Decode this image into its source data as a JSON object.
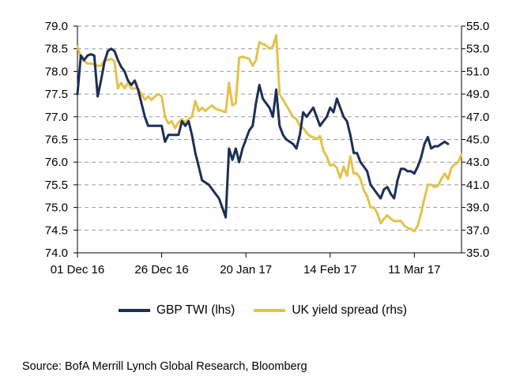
{
  "chart_data": {
    "type": "line",
    "title": "",
    "x_tick_labels": [
      "01 Dec 16",
      "26 Dec 16",
      "20 Jan 17",
      "14 Feb 17",
      "11 Mar 17"
    ],
    "x_range_days": [
      0,
      114
    ],
    "x_tick_days": [
      0,
      25,
      50,
      75,
      100
    ],
    "y_left": {
      "label": "GBP TWI (lhs)",
      "lim": [
        74.0,
        79.0
      ],
      "ticks": [
        "74.0",
        "74.5",
        "75.0",
        "75.5",
        "76.0",
        "76.5",
        "77.0",
        "77.5",
        "78.0",
        "78.5",
        "79.0"
      ]
    },
    "y_right": {
      "label": "UK yield spread (rhs)",
      "lim": [
        35.0,
        55.0
      ],
      "ticks": [
        "35.0",
        "37.0",
        "39.0",
        "41.0",
        "43.0",
        "45.0",
        "47.0",
        "49.0",
        "51.0",
        "53.0",
        "55.0"
      ]
    },
    "gridlines": "horizontal dashed",
    "series": [
      {
        "name": "GBP TWI (lhs)",
        "axis": "left",
        "color": "#1b2f56",
        "points": [
          [
            0,
            77.5
          ],
          [
            1,
            78.35
          ],
          [
            2,
            78.25
          ],
          [
            3,
            78.35
          ],
          [
            4,
            78.38
          ],
          [
            5,
            78.35
          ],
          [
            6,
            77.45
          ],
          [
            7,
            77.8
          ],
          [
            8,
            78.2
          ],
          [
            9,
            78.45
          ],
          [
            10,
            78.5
          ],
          [
            11,
            78.45
          ],
          [
            12,
            78.25
          ],
          [
            13,
            78.1
          ],
          [
            14,
            78.0
          ],
          [
            15,
            77.8
          ],
          [
            16,
            77.7
          ],
          [
            17,
            77.8
          ],
          [
            18,
            77.6
          ],
          [
            19,
            77.3
          ],
          [
            20,
            77.0
          ],
          [
            21,
            76.8
          ],
          [
            22,
            76.8
          ],
          [
            23,
            76.8
          ],
          [
            24,
            76.8
          ],
          [
            25,
            76.8
          ],
          [
            26,
            76.45
          ],
          [
            27,
            76.6
          ],
          [
            28,
            76.6
          ],
          [
            29,
            76.6
          ],
          [
            30,
            76.6
          ],
          [
            31,
            76.9
          ],
          [
            32,
            76.8
          ],
          [
            33,
            76.9
          ],
          [
            34,
            76.6
          ],
          [
            35,
            76.2
          ],
          [
            36,
            75.9
          ],
          [
            37,
            75.6
          ],
          [
            38,
            75.55
          ],
          [
            39,
            75.5
          ],
          [
            40,
            75.4
          ],
          [
            41,
            75.3
          ],
          [
            42,
            75.2
          ],
          [
            43,
            75.0
          ],
          [
            44,
            74.78
          ],
          [
            45,
            76.3
          ],
          [
            46,
            76.05
          ],
          [
            47,
            76.3
          ],
          [
            48,
            76.0
          ],
          [
            49,
            76.3
          ],
          [
            50,
            76.5
          ],
          [
            51,
            76.7
          ],
          [
            52,
            76.8
          ],
          [
            53,
            77.3
          ],
          [
            54,
            77.7
          ],
          [
            55,
            77.4
          ],
          [
            56,
            77.3
          ],
          [
            57,
            77.2
          ],
          [
            58,
            77.0
          ],
          [
            59,
            77.6
          ],
          [
            60,
            76.8
          ],
          [
            61,
            76.6
          ],
          [
            62,
            76.5
          ],
          [
            63,
            76.45
          ],
          [
            64,
            76.4
          ],
          [
            65,
            76.3
          ],
          [
            66,
            76.6
          ],
          [
            67,
            77.1
          ],
          [
            68,
            77.0
          ],
          [
            69,
            77.1
          ],
          [
            70,
            77.2
          ],
          [
            71,
            77.0
          ],
          [
            72,
            76.8
          ],
          [
            73,
            76.9
          ],
          [
            74,
            77.0
          ],
          [
            75,
            77.2
          ],
          [
            76,
            77.1
          ],
          [
            77,
            77.4
          ],
          [
            78,
            77.2
          ],
          [
            79,
            77.0
          ],
          [
            80,
            76.9
          ],
          [
            81,
            76.6
          ],
          [
            82,
            76.2
          ],
          [
            83,
            76.2
          ],
          [
            84,
            76.0
          ],
          [
            85,
            75.9
          ],
          [
            86,
            75.8
          ],
          [
            87,
            75.5
          ],
          [
            88,
            75.4
          ],
          [
            89,
            75.3
          ],
          [
            90,
            75.2
          ],
          [
            91,
            75.4
          ],
          [
            92,
            75.45
          ],
          [
            93,
            75.3
          ],
          [
            94,
            75.2
          ],
          [
            95,
            75.6
          ],
          [
            96,
            75.85
          ],
          [
            97,
            75.85
          ],
          [
            98,
            75.8
          ],
          [
            99,
            75.8
          ],
          [
            100,
            75.75
          ],
          [
            101,
            75.9
          ],
          [
            102,
            76.1
          ],
          [
            103,
            76.4
          ],
          [
            104,
            76.55
          ],
          [
            105,
            76.3
          ],
          [
            106,
            76.35
          ],
          [
            107,
            76.35
          ],
          [
            108,
            76.4
          ],
          [
            109,
            76.45
          ],
          [
            110,
            76.4
          ]
        ]
      },
      {
        "name": "UK yield spread (rhs)",
        "axis": "right",
        "color": "#e4c24a",
        "points": [
          [
            0,
            53.2
          ],
          [
            1,
            52.2
          ],
          [
            2,
            51.9
          ],
          [
            3,
            51.7
          ],
          [
            4,
            51.7
          ],
          [
            5,
            51.6
          ],
          [
            6,
            51.5
          ],
          [
            7,
            51.5
          ],
          [
            8,
            52.0
          ],
          [
            9,
            52.0
          ],
          [
            10,
            52.1
          ],
          [
            11,
            51.9
          ],
          [
            12,
            49.5
          ],
          [
            13,
            50.0
          ],
          [
            14,
            49.5
          ],
          [
            15,
            50.0
          ],
          [
            16,
            49.5
          ],
          [
            17,
            49.5
          ],
          [
            18,
            49.5
          ],
          [
            19,
            49.0
          ],
          [
            20,
            48.5
          ],
          [
            21,
            48.8
          ],
          [
            22,
            48.5
          ],
          [
            23,
            48.8
          ],
          [
            24,
            49.0
          ],
          [
            25,
            48.8
          ],
          [
            26,
            47.0
          ],
          [
            27,
            46.4
          ],
          [
            28,
            46.6
          ],
          [
            29,
            46.0
          ],
          [
            30,
            46.5
          ],
          [
            31,
            46.8
          ],
          [
            32,
            46.5
          ],
          [
            33,
            46.8
          ],
          [
            34,
            47.0
          ],
          [
            35,
            48.4
          ],
          [
            36,
            47.5
          ],
          [
            37,
            47.8
          ],
          [
            38,
            47.5
          ],
          [
            39,
            47.8
          ],
          [
            40,
            48.0
          ],
          [
            41,
            47.7
          ],
          [
            42,
            47.6
          ],
          [
            43,
            47.5
          ],
          [
            44,
            47.4
          ],
          [
            45,
            50.0
          ],
          [
            46,
            48.0
          ],
          [
            47,
            48.2
          ],
          [
            48,
            52.2
          ],
          [
            49,
            52.3
          ],
          [
            50,
            52.2
          ],
          [
            51,
            52.1
          ],
          [
            52,
            51.5
          ],
          [
            53,
            52.0
          ],
          [
            54,
            53.6
          ],
          [
            55,
            53.4
          ],
          [
            56,
            53.3
          ],
          [
            57,
            53.0
          ],
          [
            58,
            53.2
          ],
          [
            59,
            54.2
          ],
          [
            60,
            49.0
          ],
          [
            61,
            48.5
          ],
          [
            62,
            48.0
          ],
          [
            63,
            47.5
          ],
          [
            64,
            47.0
          ],
          [
            65,
            46.8
          ],
          [
            66,
            46.2
          ],
          [
            67,
            46.0
          ],
          [
            68,
            45.6
          ],
          [
            69,
            45.3
          ],
          [
            70,
            45.2
          ],
          [
            71,
            45.0
          ],
          [
            72,
            45.3
          ],
          [
            73,
            44.0
          ],
          [
            74,
            43.5
          ],
          [
            75,
            42.7
          ],
          [
            76,
            42.8
          ],
          [
            77,
            42.5
          ],
          [
            78,
            41.6
          ],
          [
            79,
            42.6
          ],
          [
            80,
            41.8
          ],
          [
            81,
            43.5
          ],
          [
            82,
            42.0
          ],
          [
            83,
            42.0
          ],
          [
            84,
            41.5
          ],
          [
            85,
            40.5
          ],
          [
            86,
            40.0
          ],
          [
            87,
            39.0
          ],
          [
            88,
            39.0
          ],
          [
            89,
            38.5
          ],
          [
            90,
            37.6
          ],
          [
            91,
            38.0
          ],
          [
            92,
            38.3
          ],
          [
            93,
            38.0
          ],
          [
            94,
            37.8
          ],
          [
            95,
            37.8
          ],
          [
            96,
            37.8
          ],
          [
            97,
            37.4
          ],
          [
            98,
            37.2
          ],
          [
            99,
            37.1
          ],
          [
            100,
            36.9
          ],
          [
            101,
            37.4
          ],
          [
            102,
            38.5
          ],
          [
            103,
            39.8
          ],
          [
            104,
            41.0
          ],
          [
            105,
            41.0
          ],
          [
            106,
            40.8
          ],
          [
            107,
            40.9
          ],
          [
            108,
            41.5
          ],
          [
            109,
            42.0
          ],
          [
            110,
            41.5
          ],
          [
            111,
            42.5
          ],
          [
            112,
            42.8
          ],
          [
            113,
            43.0
          ],
          [
            114,
            43.7
          ]
        ]
      }
    ],
    "legend_position": "bottom",
    "source": "Source: BofA Merrill Lynch Global Research, Bloomberg"
  },
  "legend": {
    "gbp_label": "GBP TWI (lhs)",
    "uk_label": "UK yield spread (rhs)",
    "gbp_color": "#1b2f56",
    "uk_color": "#e4c24a"
  },
  "footer": {
    "source": "Source: BofA Merrill Lynch Global Research, Bloomberg"
  }
}
